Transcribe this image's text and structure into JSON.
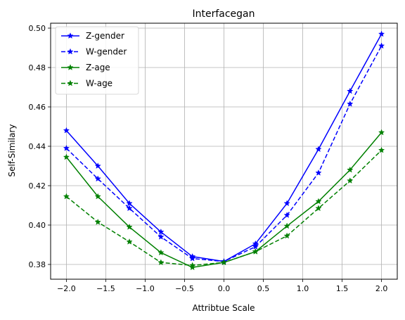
{
  "chart_data": {
    "type": "line",
    "title": "Interfacegan",
    "xlabel": "Attribtue Scale",
    "ylabel": "Self-Similary",
    "x": [
      -2.0,
      -1.6,
      -1.2,
      -0.8,
      -0.4,
      0.0,
      0.4,
      0.8,
      1.2,
      1.6,
      2.0
    ],
    "xlim": [
      -2.2,
      2.2
    ],
    "ylim": [
      0.3725,
      0.5025
    ],
    "xticks": [
      -2.0,
      -1.5,
      -1.0,
      -0.5,
      0.0,
      0.5,
      1.0,
      1.5,
      2.0
    ],
    "xtick_labels": [
      "−2.0",
      "−1.5",
      "−1.0",
      "−0.5",
      "0.0",
      "0.5",
      "1.0",
      "1.5",
      "2.0"
    ],
    "yticks": [
      0.38,
      0.4,
      0.42,
      0.44,
      0.46,
      0.48,
      0.5
    ],
    "ytick_labels": [
      "0.38",
      "0.40",
      "0.42",
      "0.44",
      "0.46",
      "0.48",
      "0.50"
    ],
    "grid": true,
    "legend_position": "top-left",
    "series": [
      {
        "name": "Z-gender",
        "color": "#0000ff",
        "style": "solid",
        "marker": "star",
        "values": [
          0.448,
          0.43,
          0.411,
          0.3965,
          0.384,
          0.3815,
          0.3905,
          0.411,
          0.4385,
          0.468,
          0.497
        ]
      },
      {
        "name": "W-gender",
        "color": "#0000ff",
        "style": "dashed",
        "marker": "star",
        "values": [
          0.439,
          0.4235,
          0.4085,
          0.394,
          0.383,
          0.3815,
          0.389,
          0.405,
          0.4265,
          0.4615,
          0.491
        ]
      },
      {
        "name": "Z-age",
        "color": "#008000",
        "style": "solid",
        "marker": "star",
        "values": [
          0.4345,
          0.4145,
          0.399,
          0.386,
          0.3785,
          0.381,
          0.3865,
          0.3995,
          0.412,
          0.428,
          0.447
        ]
      },
      {
        "name": "W-age",
        "color": "#008000",
        "style": "dashed",
        "marker": "star",
        "values": [
          0.4145,
          0.4015,
          0.3915,
          0.381,
          0.3795,
          0.381,
          0.3865,
          0.3945,
          0.4085,
          0.4225,
          0.438
        ]
      }
    ]
  }
}
